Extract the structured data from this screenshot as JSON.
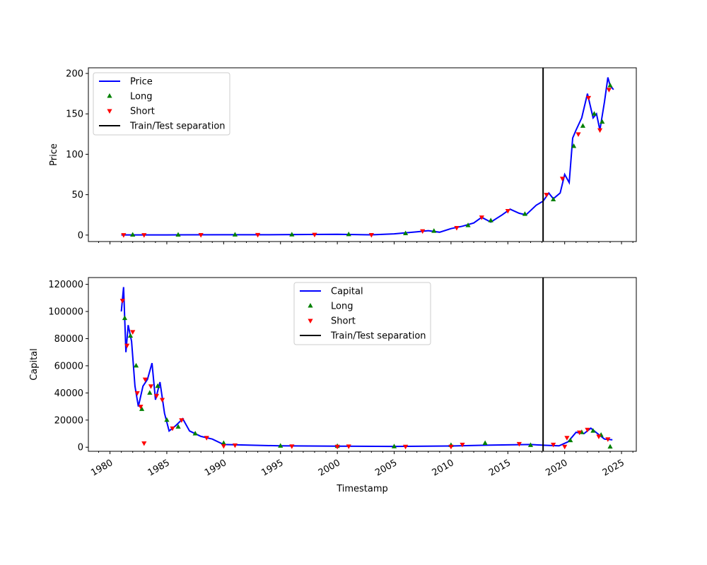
{
  "chart_data": [
    {
      "type": "line",
      "ylabel": "Price",
      "xlabel": "",
      "ylim": [
        -8,
        207
      ],
      "xlim": [
        1978.1,
        2026.3
      ],
      "yticks": [
        0,
        50,
        100,
        150,
        200
      ],
      "xticks": [
        1980,
        1985,
        1990,
        1995,
        2000,
        2005,
        2010,
        2015,
        2020,
        2025
      ],
      "xtick_labels_shown": false,
      "grid": false,
      "legend": {
        "placement": "upper-left",
        "entries": [
          "Price",
          "Long",
          "Short",
          "Train/Test separation"
        ]
      },
      "train_test_separation": 2018.1,
      "series": [
        {
          "name": "Price",
          "color": "#0000ff",
          "x": [
            1981.0,
            1985.0,
            1990.0,
            1995.0,
            2000.0,
            2003.0,
            2005.0,
            2007.0,
            2008.0,
            2009.0,
            2010.0,
            2011.0,
            2012.0,
            2012.7,
            2013.5,
            2014.5,
            2015.2,
            2016.0,
            2016.6,
            2017.5,
            2018.1,
            2018.6,
            2019.0,
            2019.6,
            2020.0,
            2020.4,
            2020.7,
            2021.0,
            2021.5,
            2022.0,
            2022.5,
            2022.8,
            2023.1,
            2023.5,
            2023.8,
            2024.0,
            2024.3
          ],
          "y": [
            0.2,
            0.2,
            0.4,
            0.5,
            1.0,
            0.3,
            1.5,
            4.0,
            5.5,
            3.5,
            8.0,
            11.0,
            15.0,
            22.0,
            16.0,
            25.0,
            32.0,
            27.0,
            25.0,
            37.0,
            42.0,
            52.0,
            45.0,
            52.0,
            75.0,
            65.0,
            120.0,
            130.0,
            145.0,
            175.0,
            145.0,
            150.0,
            130.0,
            165.0,
            195.0,
            185.0,
            180.0
          ]
        },
        {
          "name": "Long",
          "color": "#008000",
          "x": [
            1982.0,
            1986.0,
            1991.0,
            1996.0,
            2001.0,
            2006.0,
            2008.5,
            2011.5,
            2013.5,
            2016.5,
            2019.0,
            2020.8,
            2021.6,
            2022.6,
            2023.3,
            2024.0
          ],
          "y": [
            0.3,
            0.3,
            0.4,
            0.5,
            0.8,
            2.0,
            5.0,
            12.0,
            18.0,
            26.0,
            44.0,
            110.0,
            135.0,
            150.0,
            140.0,
            185.0
          ]
        },
        {
          "name": "Short",
          "color": "#ff0000",
          "x": [
            1981.2,
            1983.0,
            1988.0,
            1993.0,
            1998.0,
            2003.0,
            2007.5,
            2010.5,
            2012.7,
            2015.0,
            2018.4,
            2019.8,
            2021.2,
            2022.1,
            2023.1,
            2023.9
          ],
          "y": [
            0.2,
            0.2,
            0.3,
            0.4,
            0.6,
            0.3,
            5.0,
            9.0,
            22.0,
            30.0,
            50.0,
            70.0,
            125.0,
            170.0,
            130.0,
            180.0
          ]
        }
      ]
    },
    {
      "type": "line",
      "ylabel": "Capital",
      "xlabel": "Timestamp",
      "ylim": [
        -3000,
        125000
      ],
      "xlim": [
        1978.1,
        2026.3
      ],
      "yticks": [
        0,
        20000,
        40000,
        60000,
        80000,
        100000,
        120000
      ],
      "xticks": [
        1980,
        1985,
        1990,
        1995,
        2000,
        2005,
        2010,
        2015,
        2020,
        2025
      ],
      "grid": false,
      "legend": {
        "placement": "upper-center",
        "entries": [
          "Capital",
          "Long",
          "Short",
          "Train/Test separation"
        ]
      },
      "train_test_separation": 2018.1,
      "series": [
        {
          "name": "Capital",
          "color": "#0000ff",
          "x": [
            1981.0,
            1981.2,
            1981.4,
            1981.6,
            1981.9,
            1982.2,
            1982.5,
            1982.9,
            1983.3,
            1983.7,
            1984.0,
            1984.4,
            1984.8,
            1985.2,
            1985.8,
            1986.4,
            1987.0,
            1988.0,
            1989.0,
            1990.0,
            1995.0,
            2000.0,
            2005.0,
            2010.0,
            2013.0,
            2017.0,
            2018.1,
            2019.5,
            2020.3,
            2021.0,
            2021.7,
            2022.3,
            2022.9,
            2023.5,
            2024.2
          ],
          "y": [
            100000,
            118000,
            70000,
            90000,
            78000,
            45000,
            30000,
            45000,
            50000,
            62000,
            35000,
            48000,
            25000,
            12000,
            16000,
            21000,
            12000,
            8000,
            6000,
            2000,
            1000,
            800,
            600,
            900,
            1500,
            2000,
            1500,
            1000,
            4000,
            11000,
            10000,
            14000,
            10000,
            6000,
            5500
          ]
        },
        {
          "name": "Long",
          "color": "#008000",
          "x": [
            1981.3,
            1981.8,
            1982.3,
            1982.8,
            1983.5,
            1984.2,
            1985.0,
            1986.0,
            1987.5,
            1990.0,
            1995.0,
            2000.0,
            2005.0,
            2010.0,
            2013.0,
            2017.0,
            2020.5,
            2021.5,
            2022.5,
            2023.2,
            2024.0
          ],
          "y": [
            95000,
            82000,
            60000,
            28000,
            40000,
            45000,
            20000,
            15000,
            10000,
            3000,
            1000,
            800,
            500,
            1500,
            3000,
            1500,
            5000,
            11000,
            12000,
            9000,
            300
          ]
        },
        {
          "name": "Short",
          "color": "#ff0000",
          "x": [
            1981.1,
            1981.5,
            1982.0,
            1982.4,
            1982.7,
            1983.1,
            1983.6,
            1984.1,
            1984.6,
            1985.5,
            1986.3,
            1988.5,
            1991.0,
            1996.0,
            2001.0,
            2006.0,
            2011.0,
            2016.0,
            2019.0,
            2020.2,
            2021.3,
            2022.0,
            2023.0,
            2023.8,
            1983.0,
            1990.0,
            2000.0,
            2010.0,
            2020.0
          ],
          "y": [
            108000,
            75000,
            85000,
            40000,
            30000,
            50000,
            45000,
            38000,
            35000,
            14000,
            20000,
            7000,
            1500,
            800,
            700,
            500,
            2000,
            2500,
            2000,
            7000,
            11000,
            13000,
            8000,
            6000,
            3000,
            1000,
            500,
            500,
            500
          ]
        }
      ]
    }
  ]
}
